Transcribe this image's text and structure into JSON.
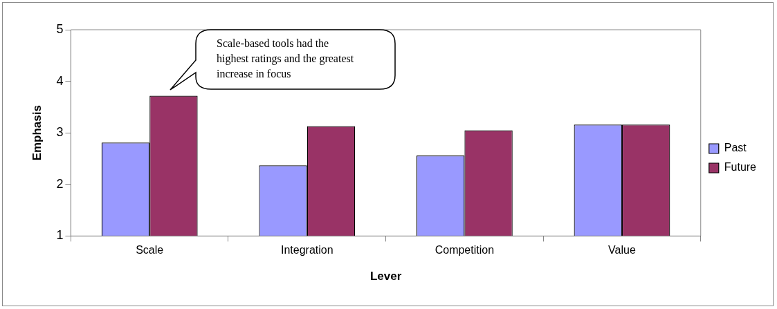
{
  "chart_data": {
    "type": "bar",
    "xlabel": "Lever",
    "ylabel": "Emphasis",
    "categories": [
      "Scale",
      "Integration",
      "Competition",
      "Value"
    ],
    "series": [
      {
        "name": "Past",
        "color": "#9999ff",
        "values": [
          2.81,
          2.37,
          2.56,
          3.16
        ]
      },
      {
        "name": "Future",
        "color": "#993366",
        "values": [
          3.72,
          3.13,
          3.05,
          3.16
        ]
      }
    ],
    "ylim": [
      1,
      5
    ],
    "yticks": [
      1,
      2,
      3,
      4,
      5
    ],
    "grid": false,
    "legend": "right",
    "annotations": [
      "Scale-based tools had the highest ratings and  the greatest increase in focus"
    ]
  }
}
